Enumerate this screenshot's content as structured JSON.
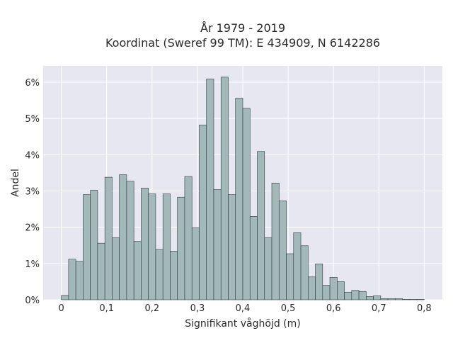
{
  "chart_data": {
    "type": "bar",
    "title_line1": "År 1979 - 2019",
    "title_line2": "Koordinat (Sweref 99 TM): E 434909, N 6142286",
    "xlabel": "Signifikant våghöjd (m)",
    "ylabel": "Andel",
    "bin_width": 0.016,
    "bin_start": 0.0,
    "xlim": [
      -0.04,
      0.84
    ],
    "ylim": [
      0,
      6.45
    ],
    "grid": true,
    "x_ticks": [
      0,
      0.1,
      0.2,
      0.3,
      0.4,
      0.5,
      0.6,
      0.7,
      0.8
    ],
    "x_tick_labels": [
      "0",
      "0,1",
      "0,2",
      "0,3",
      "0,4",
      "0,5",
      "0,6",
      "0,7",
      "0,8"
    ],
    "y_ticks": [
      0,
      1,
      2,
      3,
      4,
      5,
      6
    ],
    "y_tick_labels": [
      "0%",
      "1%",
      "2%",
      "3%",
      "4%",
      "5%",
      "6%"
    ],
    "values": [
      0.12,
      1.12,
      1.06,
      2.9,
      3.02,
      1.56,
      3.38,
      1.71,
      3.45,
      3.27,
      1.61,
      3.08,
      2.92,
      1.39,
      2.92,
      1.34,
      2.83,
      3.4,
      1.99,
      4.82,
      6.09,
      3.04,
      6.14,
      2.9,
      5.56,
      5.28,
      2.3,
      4.09,
      1.71,
      3.22,
      2.73,
      1.27,
      1.85,
      1.49,
      0.63,
      0.99,
      0.4,
      0.62,
      0.5,
      0.21,
      0.26,
      0.23,
      0.09,
      0.11,
      0.03,
      0.03,
      0.03,
      0.01,
      0.01,
      0.01
    ],
    "colors": {
      "bar_fill": "#a3b9b9",
      "bar_stroke": "#2b3b3b",
      "plot_bg": "#e6e7f0",
      "grid": "#ffffff",
      "text": "#2a2a2a"
    }
  }
}
